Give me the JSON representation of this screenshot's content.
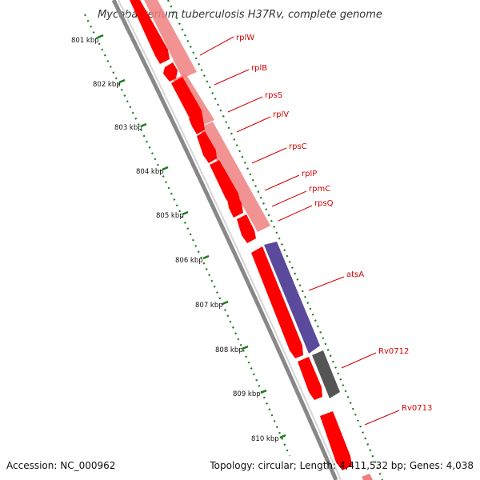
{
  "title": "Mycobacterium tuberculosis H37Rv, complete genome",
  "footer": {
    "accession": "Accession: NC_000962",
    "topology": "Topology: circular; Length: 4,411,532 bp; Genes: 4,038"
  },
  "kbp_labels": [
    "801 kbp",
    "802 kbp",
    "803 kbp",
    "804 kbp",
    "805 kbp",
    "806 kbp",
    "807 kbp",
    "808 kbp",
    "809 kbp",
    "810 kbp"
  ],
  "gene_labels": [
    "rplW",
    "rplB",
    "rpsS",
    "rplV",
    "rpsC",
    "rplP",
    "rpmC",
    "rpsQ",
    "atsA",
    "Rv0712",
    "Rv0713"
  ],
  "colors": {
    "forward_gene": "#ff0000",
    "forward_gene_light": "#f08080",
    "reverse_gene": "#5b4a9b",
    "other_gene": "#555555",
    "label": "#d40000",
    "ticks": "#1a7a1a",
    "backbone": "#888888"
  }
}
